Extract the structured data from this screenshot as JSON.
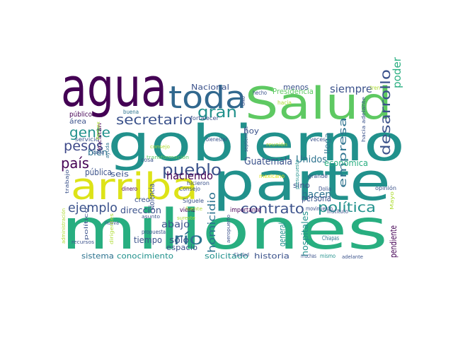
{
  "palette": {
    "dark_purple": "#440154",
    "indigo": "#472d7b",
    "blue": "#3b528b",
    "steel": "#2c728e",
    "teal": "#21918c",
    "green": "#28ae80",
    "lime": "#5ec962",
    "yellow_green": "#addc30",
    "yellow": "#dde318"
  },
  "words": [
    {
      "text": "agua",
      "color": "#440154"
    },
    {
      "text": "Salud",
      "color": "#5ec962"
    },
    {
      "text": "toda",
      "color": "#31688e"
    },
    {
      "text": "gobierno",
      "color": "#21918c"
    },
    {
      "text": "parte",
      "color": "#21918c"
    },
    {
      "text": "arriba",
      "color": "#dde318"
    },
    {
      "text": "millones",
      "color": "#28ae80"
    },
    {
      "text": "gran",
      "color": "#21918c"
    },
    {
      "text": "secretario",
      "color": "#3b528b"
    },
    {
      "text": "gente",
      "color": "#21918c"
    },
    {
      "text": "pesos",
      "color": "#3e4989"
    },
    {
      "text": "país",
      "color": "#440154"
    },
    {
      "text": "pueblo",
      "color": "#3b528b"
    },
    {
      "text": "haciendo",
      "color": "#440154"
    },
    {
      "text": "ejemplo",
      "color": "#3b528b"
    },
    {
      "text": "contrato",
      "color": "#3b528b"
    },
    {
      "text": "política",
      "color": "#21918c"
    },
    {
      "text": "desarrollo",
      "color": "#3b528b"
    },
    {
      "text": "río",
      "color": "#2c728e"
    },
    {
      "text": "homicidio",
      "color": "#2c728e"
    },
    {
      "text": "empresa",
      "color": "#2c728e"
    },
    {
      "text": "siempre",
      "color": "#3b528b"
    },
    {
      "text": "poder",
      "color": "#28ae80"
    },
    {
      "text": "Guatemala",
      "color": "#3b528b"
    },
    {
      "text": "Unidos",
      "color": "#2c728e"
    },
    {
      "text": "económica",
      "color": "#28ae80"
    },
    {
      "text": "hacen",
      "color": "#2c728e"
    },
    {
      "text": "persona",
      "color": "#3b528b"
    },
    {
      "text": "dirección",
      "color": "#3b528b"
    },
    {
      "text": "abajo",
      "color": "#3b528b"
    },
    {
      "text": "sólo",
      "color": "#3b528b"
    },
    {
      "text": "espacio",
      "color": "#3b528b"
    },
    {
      "text": "tiempo",
      "color": "#3b528b"
    },
    {
      "text": "sistema",
      "color": "#2c728e"
    },
    {
      "text": "conocimiento",
      "color": "#21918c"
    },
    {
      "text": "solicitado",
      "color": "#21918c"
    },
    {
      "text": "historia",
      "color": "#3b528b"
    },
    {
      "text": "general",
      "color": "#21918c"
    },
    {
      "text": "hospitales",
      "color": "#21918c"
    },
    {
      "text": "pendiente",
      "color": "#440154"
    },
    {
      "text": "llega",
      "color": "#2c728e"
    },
    {
      "text": "sino",
      "color": "#3b528b"
    },
    {
      "text": "hoy",
      "color": "#3b528b"
    },
    {
      "text": "bien",
      "color": "#2c728e"
    },
    {
      "text": "pública",
      "color": "#3b528b"
    },
    {
      "text": "seis",
      "color": "#3b528b"
    },
    {
      "text": "Nacional",
      "color": "#3b528b"
    },
    {
      "text": "menos",
      "color": "#3b528b"
    },
    {
      "text": "Presidencia",
      "color": "#5ec962"
    },
    {
      "text": "público",
      "color": "#440154"
    },
    {
      "text": "área",
      "color": "#3b528b"
    },
    {
      "text": "violencia",
      "color": "#3b528b"
    },
    {
      "text": "creo",
      "color": "#3b528b"
    },
    {
      "text": "viene",
      "color": "#440154"
    },
    {
      "text": "importante",
      "color": "#440154"
    },
    {
      "text": "Chiapas",
      "color": "#2c728e"
    },
    {
      "text": "tren",
      "color": "#addc30"
    },
    {
      "text": "hecho",
      "color": "#3b528b"
    },
    {
      "text": "hacia",
      "color": "#addc30"
    },
    {
      "text": "hacia adelante",
      "color": "#3b528b"
    },
    {
      "text": "buena",
      "color": "#2c728e"
    },
    {
      "text": "fortalecer",
      "color": "#3b528b"
    },
    {
      "text": "servicio",
      "color": "#3b528b"
    },
    {
      "text": "Yucatán",
      "color": "#440154"
    },
    {
      "text": "ayuda",
      "color": "#2c728e"
    },
    {
      "text": "reunión",
      "color": "#addc30"
    },
    {
      "text": "veces",
      "color": "#3b528b"
    },
    {
      "text": "cada",
      "color": "#3b528b"
    },
    {
      "text": "consejo",
      "color": "#addc30"
    },
    {
      "text": "transformación",
      "color": "#5ec962"
    },
    {
      "text": "bienestar",
      "color": "#3b528b"
    },
    {
      "text": "septiembre",
      "color": "#3b528b"
    },
    {
      "text": "cosa",
      "color": "#3b528b"
    },
    {
      "text": "mexicano",
      "color": "#dde318"
    },
    {
      "text": "grande",
      "color": "#3b528b"
    },
    {
      "text": "presupuesto",
      "color": "#21918c"
    },
    {
      "text": "movimiento",
      "color": "#3b528b"
    },
    {
      "text": "Dolia",
      "color": "#3b528b"
    },
    {
      "text": "opinión",
      "color": "#3b528b"
    },
    {
      "text": "Instituto",
      "color": "#3b528b"
    },
    {
      "text": "Mayo",
      "color": "#addc30"
    },
    {
      "text": "hicieron",
      "color": "#3b528b"
    },
    {
      "text": "Consejo",
      "color": "#3b528b"
    },
    {
      "text": "dinero",
      "color": "#440154"
    },
    {
      "text": "Síguele",
      "color": "#3b528b"
    },
    {
      "text": "sureste",
      "color": "#addc30"
    },
    {
      "text": "asunto",
      "color": "#3b528b"
    },
    {
      "text": "propuesta",
      "color": "#3b528b"
    },
    {
      "text": "nueva",
      "color": "#3b528b"
    },
    {
      "text": "político",
      "color": "#3b528b"
    },
    {
      "text": "recursos",
      "color": "#3b528b"
    },
    {
      "text": "trabajo",
      "color": "#3b528b"
    },
    {
      "text": "aeropuerto",
      "color": "#3b528b"
    },
    {
      "text": "Ciudad",
      "color": "#3b528b"
    },
    {
      "text": "muchas",
      "color": "#3b528b"
    },
    {
      "text": "mismo",
      "color": "#21918c"
    },
    {
      "text": "adelante",
      "color": "#3b528b"
    },
    {
      "text": "ONU",
      "color": "#3b528b"
    },
    {
      "text": "fuente",
      "color": "#addc30"
    },
    {
      "text": "dirigentes",
      "color": "#addc30"
    },
    {
      "text": "Pemex",
      "color": "#addc30"
    },
    {
      "text": "administración",
      "color": "#addc30"
    }
  ]
}
